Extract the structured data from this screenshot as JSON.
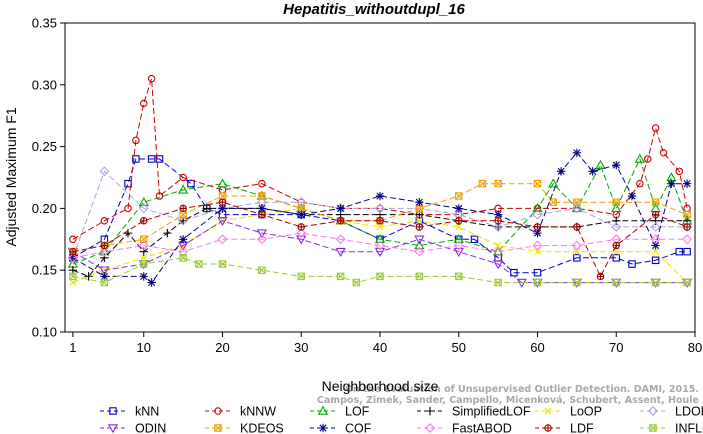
{
  "chart_data": {
    "type": "line",
    "title": "Hepatitis_withoutdupl_16",
    "xlabel": "Neighborhood size",
    "ylabel": "Adjusted Maximum F1",
    "xlim": [
      0,
      80
    ],
    "ylim": [
      0.1,
      0.35
    ],
    "x_ticks": [
      1,
      10,
      20,
      30,
      40,
      50,
      60,
      70,
      80
    ],
    "y_ticks": [
      0.1,
      0.15,
      0.2,
      0.25,
      0.3,
      0.35
    ],
    "x_tick_labels": [
      "1",
      "10",
      "20",
      "30",
      "40",
      "50",
      "60",
      "70",
      "80"
    ],
    "y_tick_labels": [
      "0.10",
      "0.15",
      "0.20",
      "0.25",
      "0.30",
      "0.35"
    ],
    "grid": false,
    "legend_position": "bottom",
    "watermark": [
      "Campos, Zimek, Sander, Campello, Micenková, Schubert, Assent, Houle",
      "On the Evaluation of Unsupervised Outlier Detection. DAMI, 2015."
    ],
    "series": [
      {
        "name": "kNN",
        "color": "#0000cc",
        "marker": "square",
        "dash": "6,3",
        "x": [
          1,
          5,
          8,
          9,
          11,
          12,
          16,
          18,
          20,
          25,
          30,
          35,
          40,
          45,
          50,
          52,
          55,
          57,
          60,
          65,
          70,
          72,
          75,
          78,
          79
        ],
        "y": [
          0.16,
          0.175,
          0.22,
          0.24,
          0.24,
          0.24,
          0.22,
          0.2,
          0.195,
          0.195,
          0.195,
          0.19,
          0.175,
          0.19,
          0.175,
          0.175,
          0.16,
          0.148,
          0.148,
          0.16,
          0.16,
          0.155,
          0.158,
          0.165,
          0.165
        ]
      },
      {
        "name": "kNNW",
        "color": "#cc0000",
        "marker": "circle",
        "dash": "6,3",
        "x": [
          1,
          5,
          8,
          9,
          10,
          11,
          12,
          15,
          20,
          25,
          30,
          35,
          40,
          45,
          50,
          55,
          60,
          65,
          70,
          73,
          74,
          75,
          76,
          78,
          79
        ],
        "y": [
          0.175,
          0.19,
          0.2,
          0.255,
          0.285,
          0.305,
          0.21,
          0.225,
          0.215,
          0.22,
          0.205,
          0.2,
          0.2,
          0.195,
          0.195,
          0.2,
          0.2,
          0.2,
          0.195,
          0.22,
          0.24,
          0.265,
          0.245,
          0.23,
          0.2
        ]
      },
      {
        "name": "LOF",
        "color": "#00aa00",
        "marker": "triangle",
        "dash": "6,3",
        "x": [
          1,
          5,
          10,
          15,
          20,
          25,
          30,
          35,
          40,
          45,
          50,
          55,
          60,
          62,
          65,
          68,
          70,
          73,
          75,
          77,
          79
        ],
        "y": [
          0.155,
          0.165,
          0.205,
          0.215,
          0.22,
          0.21,
          0.2,
          0.19,
          0.175,
          0.17,
          0.175,
          0.165,
          0.2,
          0.22,
          0.2,
          0.235,
          0.2,
          0.24,
          0.2,
          0.225,
          0.19
        ]
      },
      {
        "name": "SimplifiedLOF",
        "color": "#000000",
        "marker": "plus",
        "dash": "6,3",
        "x": [
          1,
          3,
          5,
          8,
          10,
          13,
          15,
          18,
          20,
          25,
          30,
          35,
          40,
          45,
          50,
          55,
          60,
          65,
          70,
          75,
          79
        ],
        "y": [
          0.15,
          0.145,
          0.16,
          0.18,
          0.165,
          0.18,
          0.19,
          0.2,
          0.2,
          0.2,
          0.195,
          0.195,
          0.195,
          0.195,
          0.19,
          0.185,
          0.185,
          0.185,
          0.19,
          0.19,
          0.19
        ]
      },
      {
        "name": "LoOP",
        "color": "#e6e600",
        "marker": "x",
        "dash": "6,3",
        "x": [
          1,
          5,
          10,
          15,
          20,
          25,
          30,
          35,
          40,
          45,
          50,
          55,
          60,
          65,
          70,
          75,
          79
        ],
        "y": [
          0.14,
          0.15,
          0.16,
          0.17,
          0.19,
          0.195,
          0.2,
          0.19,
          0.185,
          0.19,
          0.185,
          0.17,
          0.165,
          0.165,
          0.165,
          0.165,
          0.14
        ]
      },
      {
        "name": "LDOF",
        "color": "#b0a0e0",
        "marker": "diamond",
        "dash": "6,3",
        "x": [
          1,
          5,
          10,
          15,
          20,
          25,
          30,
          35,
          40,
          45,
          50,
          55,
          60,
          65,
          70,
          75,
          79
        ],
        "y": [
          0.16,
          0.23,
          0.2,
          0.19,
          0.2,
          0.205,
          0.205,
          0.2,
          0.2,
          0.2,
          0.195,
          0.185,
          0.195,
          0.2,
          0.185,
          0.185,
          0.185
        ]
      },
      {
        "name": "ODIN",
        "color": "#8a2be2",
        "marker": "triangle-down",
        "dash": "6,3",
        "x": [
          1,
          5,
          10,
          15,
          20,
          25,
          30,
          35,
          40,
          45,
          50,
          55,
          58,
          60,
          65,
          70,
          75,
          79
        ],
        "y": [
          0.165,
          0.15,
          0.155,
          0.17,
          0.19,
          0.18,
          0.175,
          0.165,
          0.165,
          0.175,
          0.165,
          0.155,
          0.14,
          0.14,
          0.14,
          0.14,
          0.14,
          0.14
        ]
      },
      {
        "name": "KDEOS",
        "color": "#f0a000",
        "marker": "square-x",
        "dash": "6,3",
        "x": [
          1,
          5,
          10,
          15,
          20,
          25,
          30,
          35,
          40,
          45,
          50,
          53,
          55,
          60,
          62,
          65,
          70,
          75,
          79
        ],
        "y": [
          0.165,
          0.17,
          0.175,
          0.195,
          0.21,
          0.21,
          0.2,
          0.19,
          0.19,
          0.2,
          0.21,
          0.22,
          0.22,
          0.22,
          0.205,
          0.205,
          0.205,
          0.205,
          0.195
        ]
      },
      {
        "name": "COF",
        "color": "#000080",
        "marker": "asterisk",
        "dash": "6,3",
        "x": [
          1,
          5,
          10,
          11,
          15,
          20,
          25,
          30,
          35,
          40,
          45,
          50,
          55,
          60,
          63,
          65,
          67,
          70,
          72,
          75,
          77,
          79
        ],
        "y": [
          0.16,
          0.145,
          0.145,
          0.14,
          0.175,
          0.2,
          0.2,
          0.195,
          0.2,
          0.21,
          0.205,
          0.2,
          0.195,
          0.18,
          0.23,
          0.245,
          0.23,
          0.235,
          0.21,
          0.17,
          0.22,
          0.22
        ]
      },
      {
        "name": "FastABOD",
        "color": "#ff77ee",
        "marker": "diamond",
        "dash": "6,3",
        "x": [
          1,
          5,
          10,
          15,
          20,
          25,
          30,
          35,
          40,
          45,
          50,
          55,
          60,
          65,
          70,
          75,
          79
        ],
        "y": [
          0.16,
          0.165,
          0.17,
          0.165,
          0.175,
          0.175,
          0.18,
          0.175,
          0.17,
          0.165,
          0.17,
          0.165,
          0.17,
          0.17,
          0.175,
          0.175,
          0.175
        ]
      },
      {
        "name": "LDF",
        "color": "#a00000",
        "marker": "circle-plus",
        "dash": "6,3",
        "x": [
          1,
          5,
          10,
          15,
          20,
          25,
          30,
          35,
          40,
          45,
          50,
          55,
          60,
          65,
          68,
          70,
          75,
          79
        ],
        "y": [
          0.165,
          0.17,
          0.19,
          0.2,
          0.205,
          0.195,
          0.185,
          0.19,
          0.19,
          0.185,
          0.19,
          0.19,
          0.185,
          0.185,
          0.145,
          0.17,
          0.195,
          0.185
        ]
      },
      {
        "name": "INFLO",
        "color": "#99cc33",
        "marker": "hourglass",
        "dash": "6,3",
        "x": [
          1,
          5,
          10,
          15,
          17,
          20,
          25,
          30,
          35,
          37,
          40,
          45,
          50,
          55,
          60,
          65,
          70,
          75,
          79
        ],
        "y": [
          0.145,
          0.14,
          0.155,
          0.16,
          0.155,
          0.155,
          0.15,
          0.145,
          0.145,
          0.14,
          0.145,
          0.145,
          0.145,
          0.14,
          0.14,
          0.14,
          0.14,
          0.14,
          0.14
        ]
      }
    ]
  }
}
